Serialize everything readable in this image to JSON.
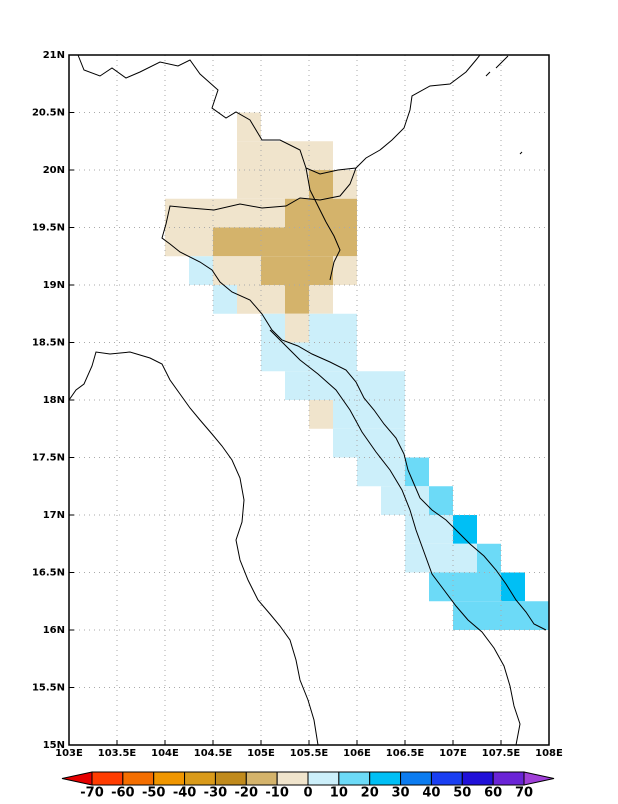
{
  "chart_data": {
    "type": "gridmap",
    "xlim": [
      103,
      108
    ],
    "ylim": [
      15,
      21
    ],
    "xticks": [
      {
        "value": 103,
        "label": "103E"
      },
      {
        "value": 103.5,
        "label": "103.5E"
      },
      {
        "value": 104,
        "label": "104E"
      },
      {
        "value": 104.5,
        "label": "104.5E"
      },
      {
        "value": 105,
        "label": "105E"
      },
      {
        "value": 105.5,
        "label": "105.5E"
      },
      {
        "value": 106,
        "label": "106E"
      },
      {
        "value": 106.5,
        "label": "106.5E"
      },
      {
        "value": 107,
        "label": "107E"
      },
      {
        "value": 107.5,
        "label": "107.5E"
      },
      {
        "value": 108,
        "label": "108E"
      }
    ],
    "yticks": [
      {
        "value": 15,
        "label": "15N"
      },
      {
        "value": 15.5,
        "label": "15.5N"
      },
      {
        "value": 16,
        "label": "16N"
      },
      {
        "value": 16.5,
        "label": "16.5N"
      },
      {
        "value": 17,
        "label": "17N"
      },
      {
        "value": 17.5,
        "label": "17.5N"
      },
      {
        "value": 18,
        "label": "18N"
      },
      {
        "value": 18.5,
        "label": "18.5N"
      },
      {
        "value": 19,
        "label": "19N"
      },
      {
        "value": 19.5,
        "label": "19.5N"
      },
      {
        "value": 20,
        "label": "20N"
      },
      {
        "value": 20.5,
        "label": "20.5N"
      },
      {
        "value": 21,
        "label": "21N"
      }
    ],
    "grid": true,
    "cell_size": 0.25,
    "levels": [
      -70,
      -60,
      -50,
      -40,
      -30,
      -20,
      -10,
      0,
      10,
      20,
      30,
      40,
      50,
      60,
      70
    ],
    "colors": [
      "#e60000",
      "#ff3c00",
      "#f46e00",
      "#f09600",
      "#d99a1a",
      "#c08a1c",
      "#d4b36b",
      "#f0e4cc",
      "#cceffa",
      "#6cdaf7",
      "#00bff5",
      "#0c7cf0",
      "#1a3ff2",
      "#2010d8",
      "#6a24d6",
      "#a040d8"
    ],
    "cells": [
      [
        20.25,
        104.75,
        1,
        -5
      ],
      [
        20.0,
        104.75,
        4,
        -5
      ],
      [
        19.75,
        104.75,
        3,
        -5
      ],
      [
        19.75,
        105.5,
        1,
        -15
      ],
      [
        19.75,
        105.75,
        1,
        -5
      ],
      [
        19.5,
        104.0,
        5,
        -5
      ],
      [
        19.5,
        105.25,
        3,
        -15
      ],
      [
        19.25,
        104.0,
        2,
        -5
      ],
      [
        19.25,
        104.5,
        6,
        -15
      ],
      [
        19.0,
        104.25,
        1,
        5
      ],
      [
        19.0,
        104.5,
        2,
        -5
      ],
      [
        19.0,
        105.0,
        3,
        -15
      ],
      [
        19.0,
        105.75,
        1,
        -5
      ],
      [
        18.75,
        104.5,
        1,
        5
      ],
      [
        18.75,
        104.75,
        2,
        -5
      ],
      [
        18.75,
        105.25,
        1,
        -15
      ],
      [
        18.75,
        105.5,
        1,
        -5
      ],
      [
        18.5,
        105.0,
        1,
        5
      ],
      [
        18.5,
        105.25,
        1,
        -5
      ],
      [
        18.5,
        105.5,
        2,
        5
      ],
      [
        18.25,
        105.0,
        4,
        5
      ],
      [
        18.0,
        105.25,
        5,
        5
      ],
      [
        17.75,
        105.5,
        1,
        -5
      ],
      [
        17.75,
        105.75,
        3,
        5
      ],
      [
        17.5,
        105.75,
        3,
        5
      ],
      [
        17.25,
        106.0,
        2,
        5
      ],
      [
        17.25,
        106.5,
        1,
        15
      ],
      [
        17.0,
        106.25,
        2,
        5
      ],
      [
        17.0,
        106.75,
        1,
        15
      ],
      [
        16.75,
        106.5,
        2,
        5
      ],
      [
        16.75,
        107.0,
        1,
        25
      ],
      [
        16.5,
        106.5,
        3,
        5
      ],
      [
        16.5,
        107.25,
        1,
        15
      ],
      [
        16.25,
        106.75,
        3,
        15
      ],
      [
        16.25,
        107.5,
        1,
        25
      ],
      [
        16.0,
        107.0,
        4,
        15
      ]
    ]
  }
}
